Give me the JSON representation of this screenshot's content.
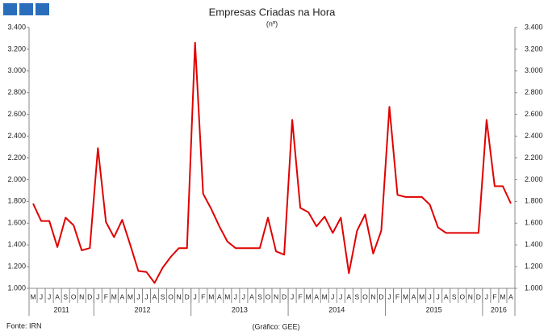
{
  "chart_data": {
    "type": "line",
    "title": "Empresas Criadas na Hora",
    "subtitle": "(nº)",
    "source": "Fonte: IRN",
    "note": "(Gráfico: GEE)",
    "categories": [
      "M",
      "J",
      "J",
      "A",
      "S",
      "O",
      "N",
      "D",
      "J",
      "F",
      "M",
      "A",
      "M",
      "J",
      "J",
      "A",
      "S",
      "O",
      "N",
      "D",
      "J",
      "F",
      "M",
      "A",
      "M",
      "J",
      "J",
      "A",
      "S",
      "O",
      "N",
      "D",
      "J",
      "F",
      "M",
      "A",
      "M",
      "J",
      "J",
      "A",
      "S",
      "O",
      "N",
      "D",
      "J",
      "F",
      "M",
      "A",
      "M",
      "J",
      "J",
      "A",
      "S",
      "O",
      "N",
      "D",
      "J",
      "F",
      "M",
      "A"
    ],
    "years": [
      "2011",
      "2012",
      "2013",
      "2014",
      "2015",
      "2016"
    ],
    "series": [
      {
        "color": "#e00000",
        "values": [
          1780,
          1620,
          1620,
          1380,
          1650,
          1580,
          1350,
          1370,
          2290,
          1610,
          1470,
          1630,
          1400,
          1160,
          1150,
          1050,
          1190,
          1290,
          1370,
          1370,
          3260,
          1870,
          1730,
          1570,
          1430,
          1370,
          1370,
          1370,
          1370,
          1650,
          1340,
          1310,
          2550,
          1740,
          1700,
          1570,
          1660,
          1510,
          1650,
          1140,
          1530,
          1680,
          1320,
          1530,
          2670,
          1860,
          1840,
          1840,
          1840,
          1770,
          1560,
          1510,
          1510,
          1510,
          1510,
          1510,
          2550,
          1940,
          1940,
          1780
        ]
      }
    ],
    "ylim": [
      1000,
      3400
    ],
    "yticks": [
      {
        "value": 1000,
        "label": "1.000"
      },
      {
        "value": 1200,
        "label": "1.200"
      },
      {
        "value": 1400,
        "label": "1.400"
      },
      {
        "value": 1600,
        "label": "1.600"
      },
      {
        "value": 1800,
        "label": "1.800"
      },
      {
        "value": 2000,
        "label": "2.000"
      },
      {
        "value": 2200,
        "label": "2.200"
      },
      {
        "value": 2400,
        "label": "2.400"
      },
      {
        "value": 2600,
        "label": "2.600"
      },
      {
        "value": 2800,
        "label": "2.800"
      },
      {
        "value": 3000,
        "label": "3.000"
      },
      {
        "value": 3200,
        "label": "3.200"
      },
      {
        "value": 3400,
        "label": "3.400"
      }
    ],
    "y2lim": [
      1000,
      3400
    ],
    "y2ticks": [
      {
        "value": 1000,
        "label": "1.000"
      },
      {
        "value": 1200,
        "label": "1.200"
      },
      {
        "value": 1400,
        "label": "1.400"
      },
      {
        "value": 1600,
        "label": "1.600"
      },
      {
        "value": 1800,
        "label": "1.800"
      },
      {
        "value": 2000,
        "label": "2.000"
      },
      {
        "value": 2200,
        "label": "2.200"
      },
      {
        "value": 2400,
        "label": "2.400"
      },
      {
        "value": 2600,
        "label": "2.600"
      },
      {
        "value": 2800,
        "label": "2.800"
      },
      {
        "value": 3000,
        "label": "3.000"
      },
      {
        "value": 3200,
        "label": "3.200"
      },
      {
        "value": 3400,
        "label": "3.400"
      }
    ]
  }
}
